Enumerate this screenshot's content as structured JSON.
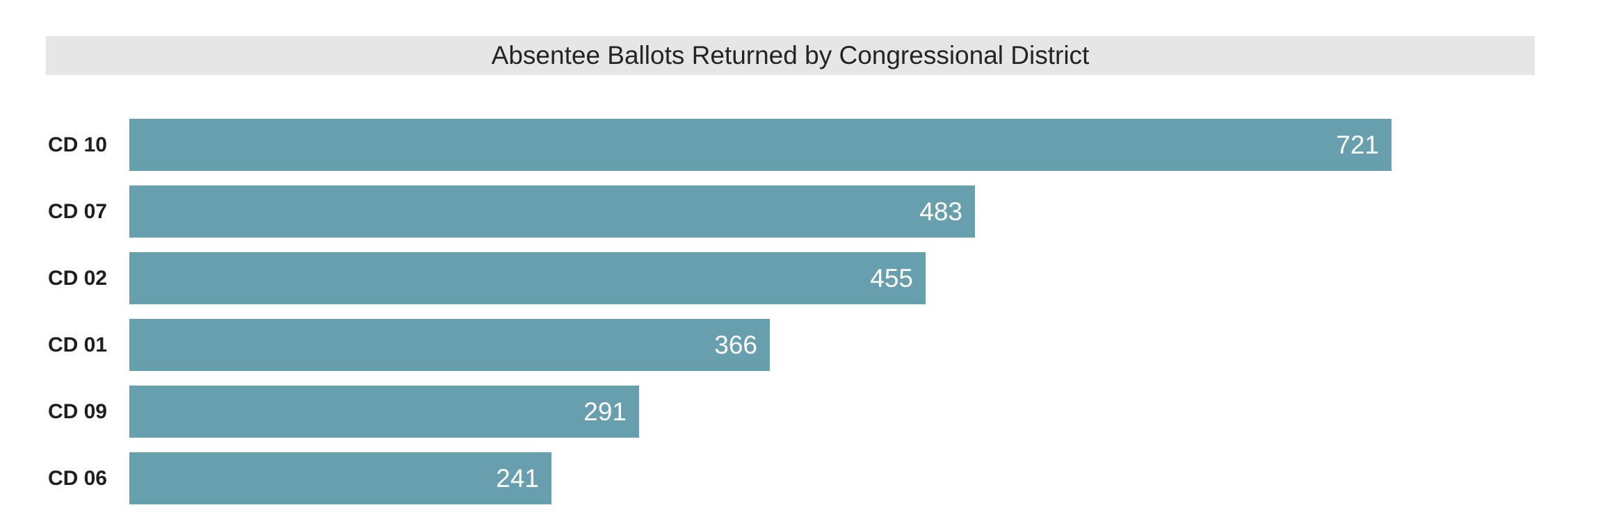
{
  "chart_data": {
    "type": "bar",
    "orientation": "horizontal",
    "title": "Absentee Ballots Returned by Congressional District",
    "categories": [
      "CD 10",
      "CD 07",
      "CD 02",
      "CD 01",
      "CD 09",
      "CD 06"
    ],
    "values": [
      721,
      483,
      455,
      366,
      291,
      241
    ],
    "xlim": [
      0,
      800
    ],
    "grid": false,
    "legend": false,
    "data_labels": "inside-end",
    "colors": {
      "bar": "#689FAE",
      "title_background": "#E6E6E6",
      "title_text": "#252423",
      "category_label_text": "#1E1E1E",
      "value_label_text": "#FFFFFF",
      "page_background": "#FFFFFF"
    }
  }
}
